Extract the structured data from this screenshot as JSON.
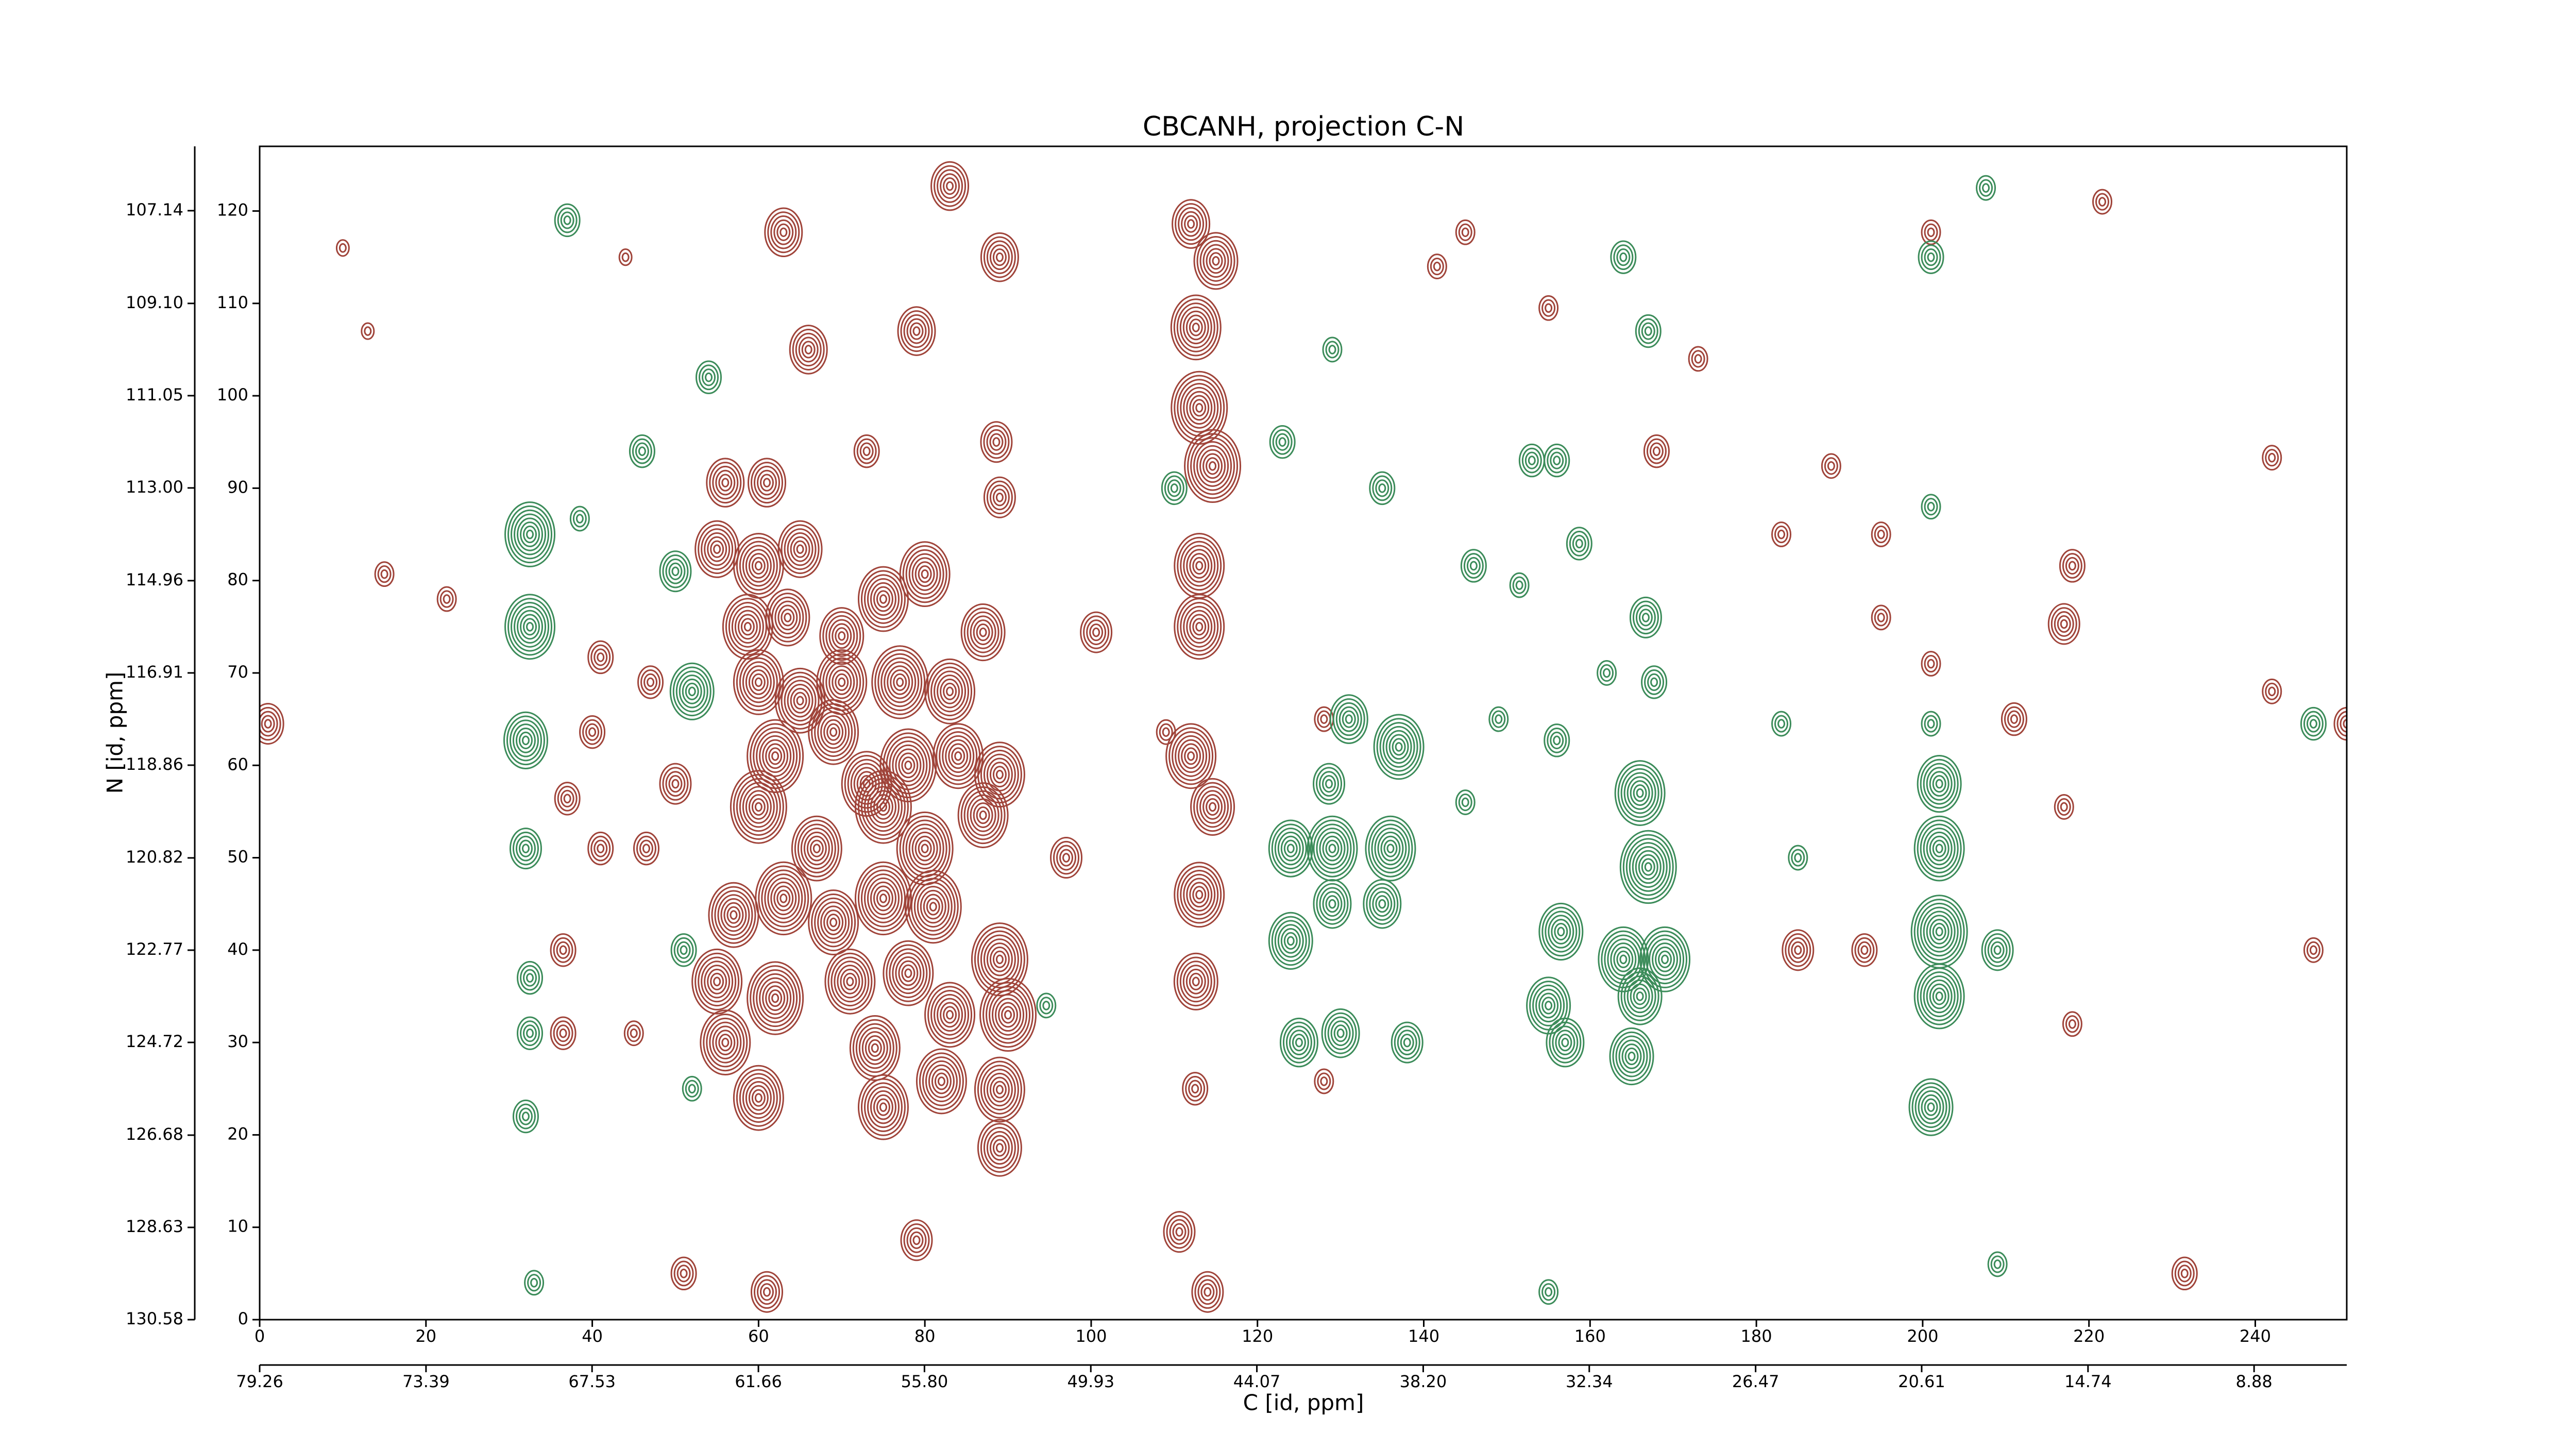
{
  "chart_data": {
    "type": "contour",
    "title": "CBCANH, projection C-N",
    "x_label": "C [id, ppm]",
    "y_label": "N [id, ppm]",
    "xlim": [
      0,
      251
    ],
    "ylim": [
      0,
      127
    ],
    "xticks": [
      0,
      20,
      40,
      60,
      80,
      100,
      120,
      140,
      160,
      180,
      200,
      220,
      240
    ],
    "yticks": [
      0,
      10,
      20,
      30,
      40,
      50,
      60,
      70,
      80,
      90,
      100,
      110,
      120
    ],
    "x2lim": [
      79.26,
      5.61
    ],
    "x2ticks": [
      79.26,
      73.39,
      67.53,
      61.66,
      {
        "value": 55.8,
        "label": "55.80"
      },
      49.93,
      44.07,
      {
        "value": 38.2,
        "label": "38.20"
      },
      32.34,
      26.47,
      20.61,
      14.74,
      8.88
    ],
    "y2lim": [
      130.58,
      105.78
    ],
    "y2ticks": [
      130.58,
      128.63,
      126.68,
      124.72,
      122.77,
      120.82,
      118.86,
      116.91,
      114.96,
      {
        "value": 113,
        "label": "113.00"
      },
      111.05,
      {
        "value": 109.1,
        "label": "109.10"
      },
      107.14
    ],
    "series": [
      {
        "color": "#a0443a",
        "x": [
          112,
          115,
          112.6,
          113,
          114.6,
          113,
          113,
          112,
          114.6,
          113,
          112.6,
          110.6,
          114,
          83,
          89,
          79,
          66,
          63,
          73,
          88.6,
          89,
          100.6,
          109,
          56,
          61,
          55,
          60,
          65,
          58.7,
          63.5,
          70,
          75,
          80,
          87,
          60,
          65,
          70,
          77,
          83,
          62,
          69,
          73,
          78,
          84,
          89,
          60,
          67,
          75,
          80,
          87,
          97,
          57,
          63,
          69,
          75,
          81,
          89,
          55,
          62,
          71,
          78,
          83,
          90,
          56,
          60,
          74,
          82,
          89,
          89,
          75,
          41,
          47,
          50,
          46.5,
          41,
          37,
          36.5,
          36.5,
          45,
          40,
          1,
          15,
          22.5,
          217,
          218,
          221.6,
          242,
          251,
          189,
          168,
          183,
          195,
          201,
          211,
          217,
          185,
          193,
          218,
          247,
          231.5,
          79,
          61,
          51,
          112.5,
          141.6,
          145,
          155,
          173,
          201,
          195,
          242,
          13,
          10,
          44,
          128,
          128
        ],
        "y": [
          118.6,
          114.6,
          107.4,
          98.7,
          92.4,
          81.6,
          75,
          61,
          55.5,
          46,
          36.6,
          9.5,
          3,
          122.7,
          115,
          107,
          105,
          117.7,
          94,
          95,
          89,
          74.4,
          63.6,
          90.6,
          90.6,
          83.4,
          81.6,
          83.4,
          75,
          76,
          74,
          78,
          80.7,
          74.4,
          69,
          67,
          69,
          69,
          68,
          61,
          63.6,
          58,
          60,
          61,
          59,
          55.5,
          51,
          55.5,
          51,
          54.6,
          50,
          43.8,
          45.6,
          43,
          45.6,
          44.7,
          39,
          36.6,
          34.8,
          36.6,
          37.5,
          33,
          33,
          30,
          24,
          29.4,
          25.8,
          24.9,
          18.6,
          23,
          71.7,
          69,
          58,
          51,
          51,
          56.4,
          31,
          40,
          31,
          63.6,
          64.5,
          80.7,
          78,
          75.3,
          81.6,
          121,
          93.3,
          64.5,
          92.4,
          94,
          85,
          76,
          71,
          65,
          55.5,
          40,
          40,
          32,
          40,
          5,
          8.6,
          3,
          5,
          25,
          114,
          117.7,
          109.5,
          104,
          117.7,
          85,
          68,
          107,
          116,
          115,
          65,
          25.8
        ],
        "levels": [
          6,
          7,
          8,
          9,
          9,
          8,
          8,
          8,
          7,
          8,
          7,
          5,
          5,
          6,
          6,
          6,
          6,
          6,
          4,
          5,
          5,
          5,
          3,
          6,
          6,
          7,
          8,
          7,
          8,
          7,
          7,
          8,
          8,
          7,
          8,
          8,
          8,
          9,
          8,
          9,
          8,
          8,
          9,
          8,
          8,
          9,
          8,
          9,
          9,
          8,
          5,
          8,
          9,
          8,
          9,
          9,
          9,
          8,
          9,
          8,
          8,
          8,
          9,
          8,
          8,
          8,
          8,
          8,
          7,
          8,
          4,
          4,
          5,
          4,
          4,
          4,
          4,
          4,
          3,
          4,
          5,
          3,
          3,
          5,
          4,
          3,
          3,
          4,
          3,
          4,
          3,
          3,
          3,
          4,
          3,
          5,
          4,
          3,
          3,
          4,
          5,
          5,
          4,
          4,
          3,
          3,
          3,
          3,
          3,
          3,
          3,
          2,
          2,
          2,
          3,
          3
        ]
      },
      {
        "color": "#3c8c5a",
        "x": [
          32.5,
          32.5,
          32,
          32,
          32.5,
          32.5,
          32,
          37,
          38.5,
          54,
          46,
          50,
          52,
          51,
          52,
          94.6,
          110,
          123,
          129,
          135,
          164,
          167,
          201,
          207.6,
          201,
          153,
          156,
          146,
          151.5,
          158.7,
          166.7,
          167.7,
          162,
          156,
          149,
          145,
          131,
          137,
          128.6,
          124,
          129,
          124,
          129,
          136,
          135,
          125,
          130,
          138,
          156.5,
          155,
          157,
          166,
          167,
          164,
          169,
          166,
          165,
          202,
          202,
          202,
          202,
          201,
          209,
          247,
          155,
          209,
          33,
          185,
          201,
          183
        ],
        "y": [
          85,
          75,
          62.7,
          51,
          37,
          31,
          22,
          119,
          86.7,
          102,
          94,
          81,
          68,
          40,
          25,
          34,
          90,
          95,
          105,
          90,
          115,
          107,
          115,
          122.5,
          88,
          93,
          93,
          81.6,
          79.5,
          84,
          76,
          69,
          70,
          62.7,
          65,
          56,
          65,
          62,
          58,
          51,
          51,
          41,
          45,
          51,
          45,
          30,
          31,
          30,
          42,
          34,
          30,
          57,
          49,
          39,
          39,
          35,
          28.5,
          58,
          51,
          42,
          35,
          23,
          40,
          64.5,
          3,
          6,
          4,
          50,
          64.5,
          64.5
        ],
        "levels": [
          8,
          8,
          7,
          5,
          4,
          4,
          4,
          4,
          3,
          4,
          4,
          5,
          7,
          4,
          3,
          3,
          4,
          4,
          3,
          4,
          4,
          4,
          4,
          3,
          3,
          4,
          4,
          4,
          3,
          4,
          5,
          4,
          3,
          4,
          3,
          3,
          6,
          8,
          5,
          7,
          8,
          7,
          6,
          8,
          6,
          6,
          6,
          5,
          7,
          7,
          6,
          8,
          9,
          8,
          8,
          7,
          7,
          7,
          8,
          9,
          8,
          7,
          5,
          4,
          3,
          3,
          3,
          3,
          3,
          3
        ]
      }
    ]
  }
}
